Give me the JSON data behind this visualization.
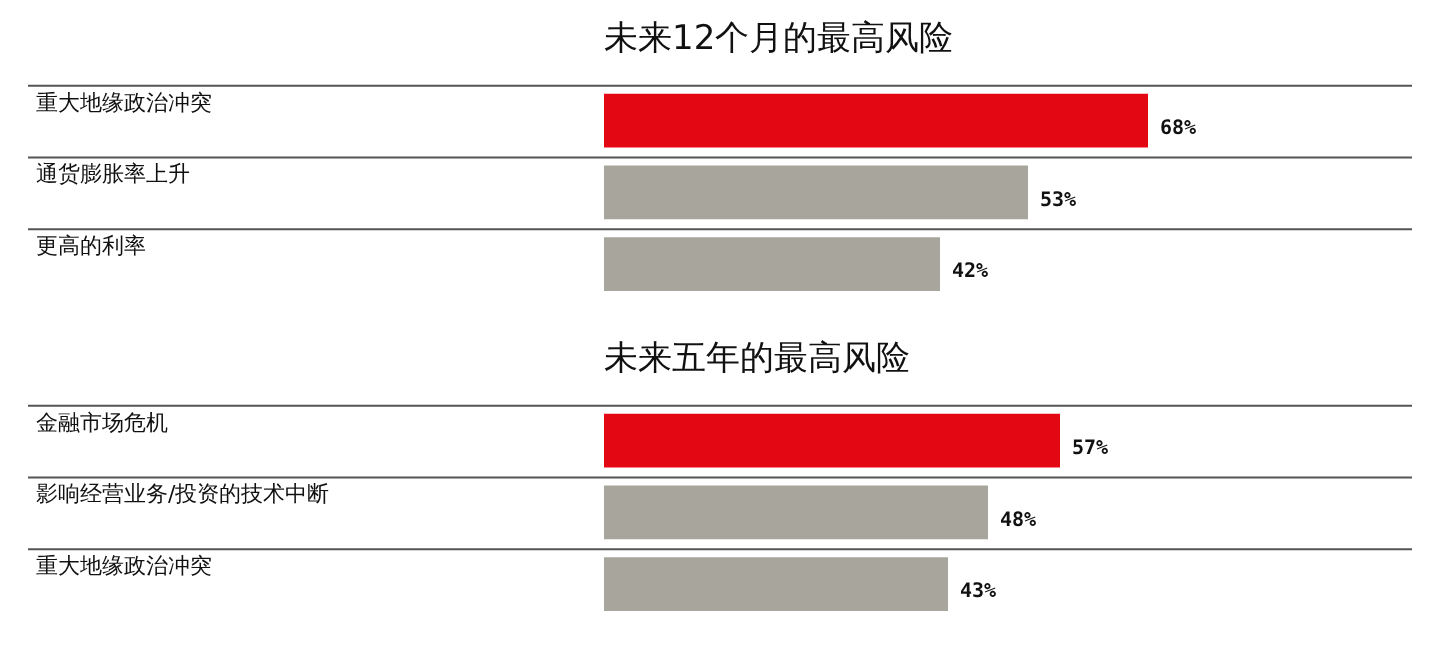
{
  "chart_data": [
    {
      "type": "bar",
      "orientation": "horizontal",
      "title": "未来12个月的最高风险",
      "categories": [
        "重大地缘政治冲突",
        "通货膨胀率上升",
        "更高的利率"
      ],
      "values": [
        68,
        53,
        42
      ],
      "colors": [
        "#e30613",
        "#a8a59c",
        "#a8a59c"
      ],
      "value_labels": [
        "68%",
        "53%",
        "42%"
      ],
      "tick_labels": false,
      "grid": false,
      "legend": false
    },
    {
      "type": "bar",
      "orientation": "horizontal",
      "title": "未来五年的最高风险",
      "categories": [
        "金融市场危机",
        "影响经营业务/投资的技术中断",
        "重大地缘政治冲突"
      ],
      "values": [
        57,
        48,
        43
      ],
      "colors": [
        "#e30613",
        "#a8a59c",
        "#a8a59c"
      ],
      "value_labels": [
        "57%",
        "48%",
        "43%"
      ],
      "tick_labels": false,
      "grid": false,
      "legend": false
    }
  ]
}
